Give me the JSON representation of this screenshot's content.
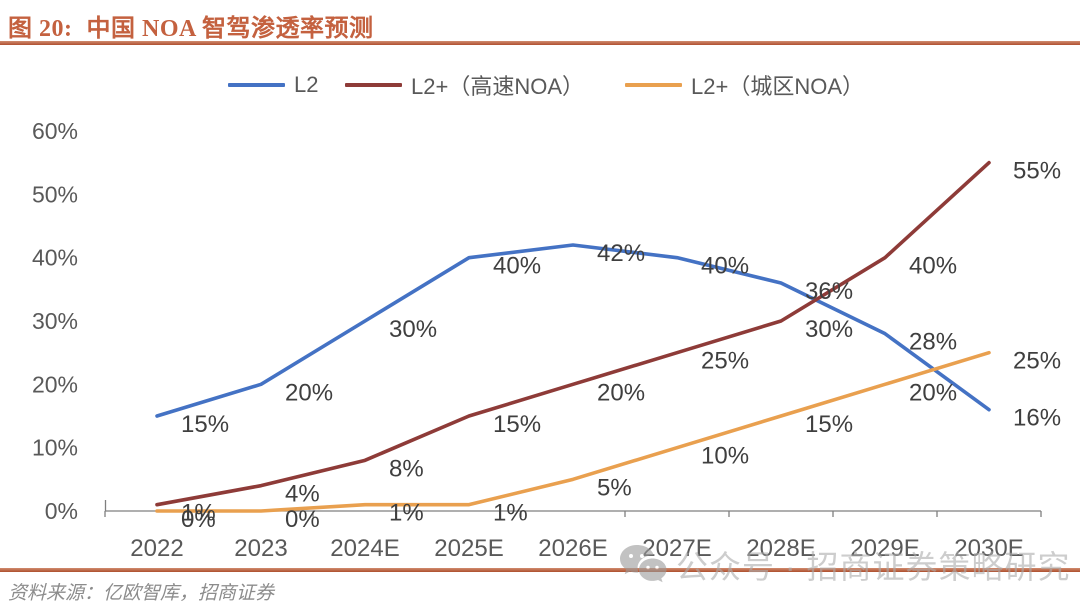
{
  "header": {
    "figure_label": "图 20:",
    "title": "中国 NOA 智驾渗透率预测"
  },
  "chart_data": {
    "type": "line",
    "title": "中国 NOA 智驾渗透率预测",
    "categories": [
      "2022",
      "2023",
      "2024E",
      "2025E",
      "2026E",
      "2027E",
      "2028E",
      "2029E",
      "2030E"
    ],
    "series": [
      {
        "name": "L2",
        "color": "#4472C4",
        "values": [
          15,
          20,
          30,
          40,
          42,
          40,
          36,
          28,
          16
        ]
      },
      {
        "name": "L2+（高速NOA）",
        "color": "#8E3B38",
        "values": [
          1,
          4,
          8,
          15,
          20,
          25,
          30,
          40,
          55
        ]
      },
      {
        "name": "L2+（城区NOA）",
        "color": "#E9A04F",
        "values": [
          0,
          0,
          1,
          1,
          5,
          10,
          15,
          20,
          25
        ]
      }
    ],
    "ylim": [
      0,
      60
    ],
    "ytick_step": 10,
    "ytick_labels": [
      "0%",
      "10%",
      "20%",
      "30%",
      "40%",
      "50%",
      "60%"
    ],
    "data_label_format": "percent",
    "data_labels_visible": true,
    "legend_position": "top",
    "grid": false,
    "axis_color": "#7F7F7F"
  },
  "watermark": {
    "icon": "wechat-icon",
    "text": "公众号 · 招商证券策略研究"
  },
  "footer": {
    "source": "资料来源：亿欧智库，招商证券"
  }
}
